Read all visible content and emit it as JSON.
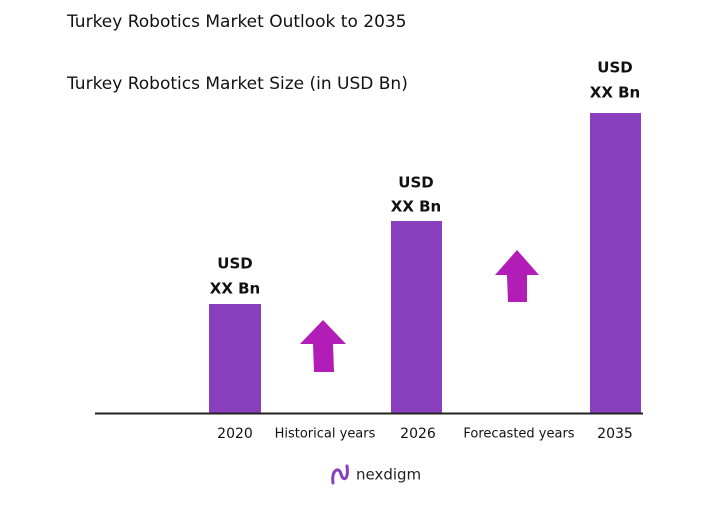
{
  "header": {
    "title": "Turkey Robotics Market Outlook to 2035",
    "subtitle": "Turkey Robotics Market Size (in USD Bn)"
  },
  "bars": [
    {
      "label_top": "USD",
      "label_bottom": "XX Bn",
      "year": "2020"
    },
    {
      "label_top": "USD",
      "label_bottom": "XX Bn",
      "year": "2026"
    },
    {
      "label_top": "USD",
      "label_bottom": "XX Bn",
      "year": "2035"
    }
  ],
  "periods": [
    "Historical years",
    "Forecasted years"
  ],
  "logo": "nexdigm"
}
